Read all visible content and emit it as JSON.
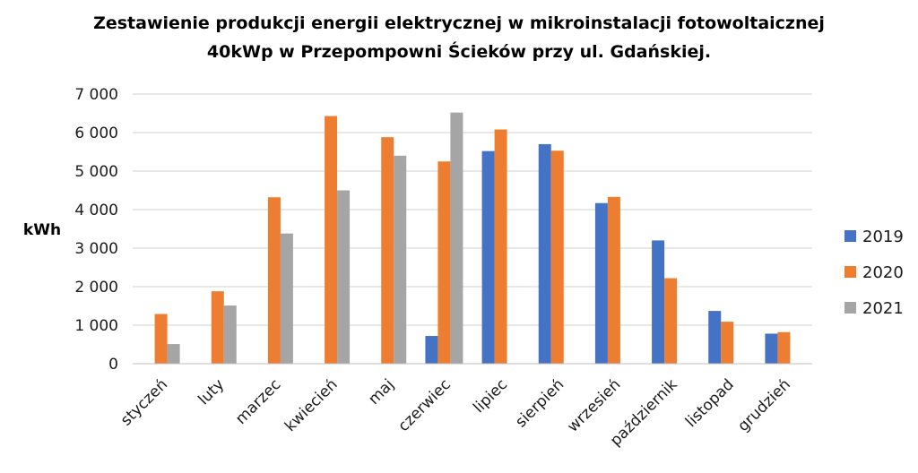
{
  "chart_data": {
    "type": "bar",
    "title_line1": "Zestawienie produkcji energii elektrycznej w mikroinstalacji fotowoltaicznej",
    "title_line2": "40kWp w Przepompowni Ścieków przy ul. Gdańskiej.",
    "xlabel": "",
    "ylabel": "kWh",
    "ylim": [
      0,
      7000
    ],
    "yticks": [
      0,
      1000,
      2000,
      3000,
      4000,
      5000,
      6000,
      7000
    ],
    "ytick_labels": [
      "0",
      "1 000",
      "2 000",
      "3 000",
      "4 000",
      "5 000",
      "6 000",
      "7 000"
    ],
    "grid": true,
    "legend_position": "right",
    "categories": [
      "styczeń",
      "luty",
      "marzec",
      "kwiecień",
      "maj",
      "czerwiec",
      "lipiec",
      "sierpień",
      "wrzesień",
      "październik",
      "listopad",
      "grudzień"
    ],
    "series": [
      {
        "name": "2019",
        "color": "#4472C4",
        "values": [
          null,
          null,
          null,
          null,
          null,
          720,
          5520,
          5700,
          4170,
          3200,
          1370,
          780
        ]
      },
      {
        "name": "2020",
        "color": "#ED7D31",
        "values": [
          1290,
          1880,
          4320,
          6430,
          5880,
          5250,
          6080,
          5530,
          4330,
          2220,
          1090,
          820
        ]
      },
      {
        "name": "2021",
        "color": "#A5A5A5",
        "values": [
          510,
          1510,
          3380,
          4500,
          5400,
          6520,
          null,
          null,
          null,
          null,
          null,
          null
        ]
      }
    ]
  }
}
